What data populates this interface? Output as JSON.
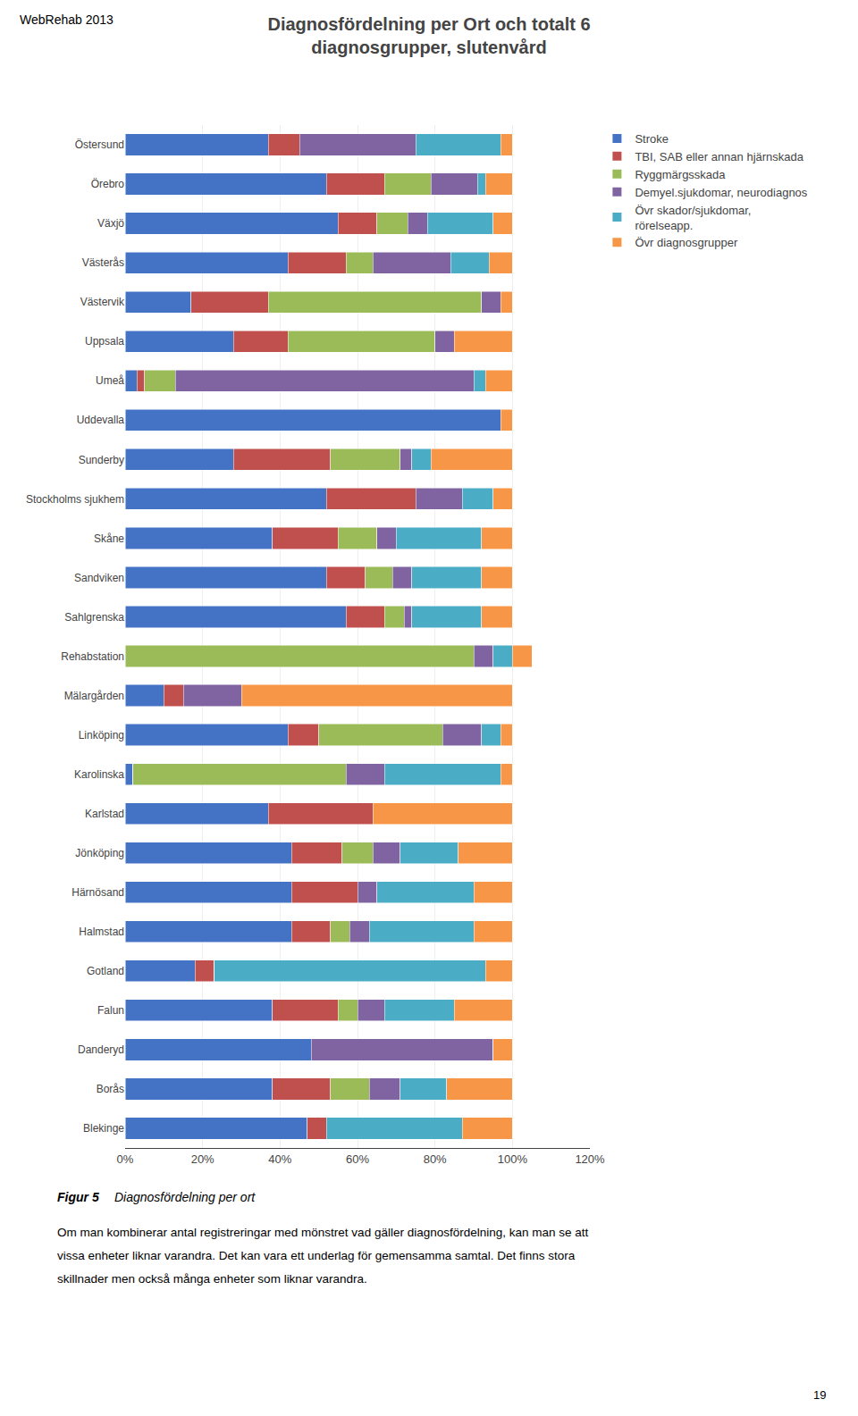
{
  "chart_data": {
    "type": "bar",
    "orientation": "horizontal",
    "stacked": true,
    "title": "Diagnosfördelning per Ort och totalt 6\ndiagnosgrupper, slutenvård",
    "categories": [
      "Blekinge",
      "Borås",
      "Danderyd",
      "Falun",
      "Gotland",
      "Halmstad",
      "Härnösand",
      "Jönköping",
      "Karlstad",
      "Karolinska",
      "Linköping",
      "Mälargården",
      "Rehabstation",
      "Sahlgrenska",
      "Sandviken",
      "Skåne",
      "Stockholms sjukhem",
      "Sunderby",
      "Uddevalla",
      "Umeå",
      "Uppsala",
      "Västervik",
      "Västerås",
      "Växjö",
      "Örebro",
      "Östersund"
    ],
    "series": [
      {
        "name": "Stroke",
        "color": "#4472C4",
        "values": [
          0.47,
          0.38,
          0.48,
          0.38,
          0.18,
          0.43,
          0.43,
          0.43,
          0.37,
          0.02,
          0.42,
          0.1,
          0.0,
          0.57,
          0.52,
          0.38,
          0.52,
          0.28,
          0.97,
          0.03,
          0.28,
          0.17,
          0.42,
          0.55,
          0.52,
          0.37
        ]
      },
      {
        "name": "TBI, SAB eller annan hjärnskada",
        "color": "#C0504D",
        "values": [
          0.05,
          0.15,
          0.0,
          0.17,
          0.05,
          0.1,
          0.17,
          0.13,
          0.27,
          0.0,
          0.08,
          0.05,
          0.0,
          0.1,
          0.1,
          0.17,
          0.23,
          0.25,
          0.0,
          0.02,
          0.14,
          0.2,
          0.15,
          0.1,
          0.15,
          0.08
        ]
      },
      {
        "name": "Ryggmärgsskada",
        "color": "#9BBB59",
        "values": [
          0.0,
          0.1,
          0.0,
          0.05,
          0.0,
          0.05,
          0.0,
          0.08,
          0.0,
          0.55,
          0.32,
          0.0,
          0.9,
          0.05,
          0.07,
          0.1,
          0.0,
          0.18,
          0.0,
          0.08,
          0.38,
          0.55,
          0.07,
          0.08,
          0.12,
          0.0
        ]
      },
      {
        "name": "Demyel.sjukdomar, neurodiagnos",
        "color": "#8064A2",
        "values": [
          0.0,
          0.08,
          0.47,
          0.07,
          0.0,
          0.05,
          0.05,
          0.07,
          0.0,
          0.1,
          0.1,
          0.15,
          0.05,
          0.02,
          0.05,
          0.05,
          0.12,
          0.03,
          0.0,
          0.77,
          0.05,
          0.05,
          0.2,
          0.05,
          0.12,
          0.3
        ]
      },
      {
        "name": "Övr skador/sjukdomar,\nrörelseapp.",
        "color": "#4BACC6",
        "values": [
          0.35,
          0.12,
          0.0,
          0.18,
          0.7,
          0.27,
          0.25,
          0.15,
          0.0,
          0.3,
          0.05,
          0.0,
          0.05,
          0.18,
          0.18,
          0.22,
          0.08,
          0.05,
          0.0,
          0.03,
          0.0,
          0.0,
          0.1,
          0.17,
          0.02,
          0.22
        ]
      },
      {
        "name": "Övr diagnosgrupper",
        "color": "#F79646",
        "values": [
          0.13,
          0.17,
          0.05,
          0.15,
          0.07,
          0.1,
          0.1,
          0.14,
          0.36,
          0.03,
          0.03,
          0.7,
          0.05,
          0.08,
          0.08,
          0.08,
          0.05,
          0.21,
          0.03,
          0.07,
          0.15,
          0.03,
          0.06,
          0.05,
          0.07,
          0.03
        ]
      }
    ],
    "xlim": [
      0,
      1.2
    ],
    "xticks": [
      {
        "value": 0,
        "label": "0%"
      },
      {
        "value": 0.2,
        "label": "20%"
      },
      {
        "value": 0.4,
        "label": "40%"
      },
      {
        "value": 0.6,
        "label": "60%"
      },
      {
        "value": 0.8,
        "label": "80%"
      },
      {
        "value": 1.0,
        "label": "100%"
      },
      {
        "value": 1.2,
        "label": "120%"
      }
    ],
    "grid": true,
    "legend": "upper right",
    "annotations": [
      "WebRehab 2013",
      "Figur 5 ",
      "Diagnosfördelning per ort",
      "Om man kombinerar antal registreringar med mönstret vad gäller diagnosfördelning, kan man se att",
      "vissa enheter liknar varandra. Det kan vara ett underlag för gemensamma samtal. Det finns stora",
      "skillnader men också många enheter som liknar varandra.",
      "19"
    ]
  }
}
